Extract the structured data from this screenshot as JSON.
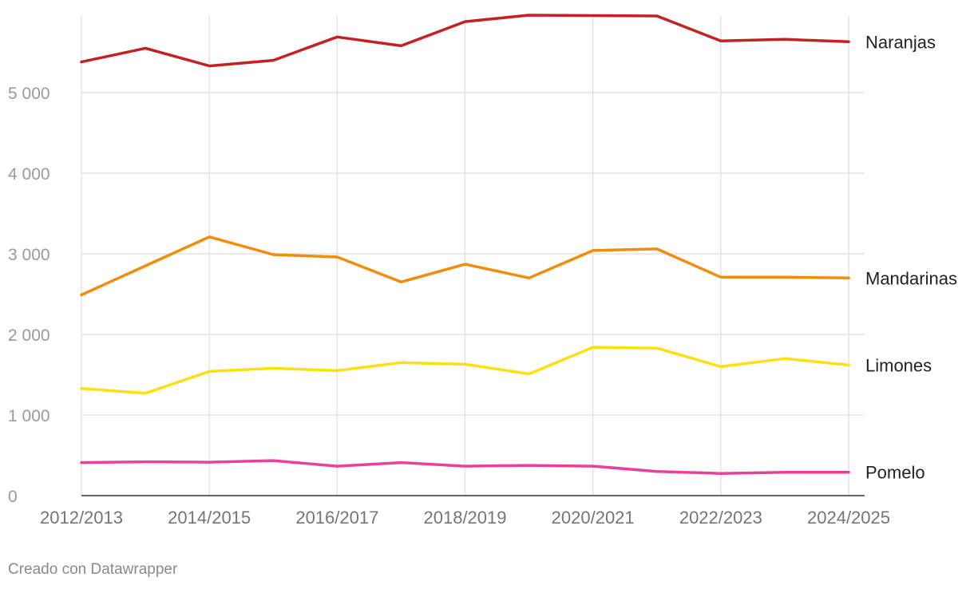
{
  "chart_data": {
    "type": "line",
    "title": "",
    "xlabel": "",
    "ylabel": "",
    "ylim": [
      0,
      5950
    ],
    "grid": true,
    "x": [
      "2012/2013",
      "2013/2014",
      "2014/2015",
      "2015/2016",
      "2016/2017",
      "2017/2018",
      "2018/2019",
      "2019/2020",
      "2020/2021",
      "2021/2022",
      "2022/2023",
      "2023/2024",
      "2024/2025"
    ],
    "x_tick_labels": [
      "2012/2013",
      "2014/2015",
      "2016/2017",
      "2018/2019",
      "2020/2021",
      "2022/2023",
      "2024/2025"
    ],
    "y_ticks": [
      0,
      1000,
      2000,
      3000,
      4000,
      5000
    ],
    "y_tick_labels": [
      "0",
      "1 000",
      "2 000",
      "3 000",
      "4 000",
      "5 000"
    ],
    "series": [
      {
        "name": "Naranjas",
        "color": "#c42125",
        "values": [
          5380,
          5550,
          5330,
          5400,
          5690,
          5580,
          5880,
          5960,
          5955,
          5950,
          5640,
          5660,
          5630
        ]
      },
      {
        "name": "Mandarinas",
        "color": "#f28c0c",
        "values": [
          2490,
          2850,
          3210,
          2990,
          2960,
          2650,
          2870,
          2700,
          3040,
          3060,
          2710,
          2710,
          2700
        ]
      },
      {
        "name": "Limones",
        "color": "#fbe012",
        "values": [
          1330,
          1270,
          1540,
          1580,
          1550,
          1650,
          1630,
          1510,
          1840,
          1830,
          1600,
          1700,
          1620
        ]
      },
      {
        "name": "Pomelo",
        "color": "#e8409b",
        "values": [
          410,
          420,
          415,
          435,
          365,
          410,
          365,
          375,
          365,
          300,
          275,
          290,
          290
        ]
      }
    ]
  },
  "footer": {
    "credit": "Creado con Datawrapper"
  }
}
